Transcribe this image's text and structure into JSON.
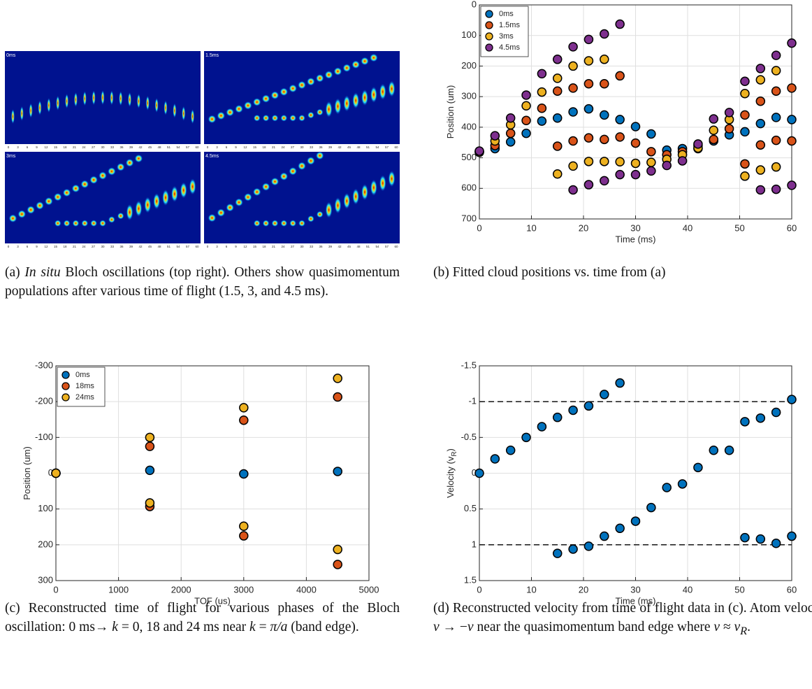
{
  "panel_a": {
    "labels": [
      "0ms",
      "1.5ms",
      "3ms",
      "4.5ms"
    ],
    "ticks": [
      0,
      3,
      6,
      9,
      12,
      15,
      18,
      21,
      24,
      27,
      30,
      33,
      36,
      39,
      42,
      45,
      48,
      51,
      54,
      57,
      60
    ]
  },
  "captions": {
    "a": [
      "(a) ",
      "In situ",
      " Bloch oscillations (top right). Others show quasimomentum populations after various time of flight (1.5, 3, and 4.5 ms)."
    ],
    "b": [
      "(b) Fitted cloud positions vs. time from (a)"
    ],
    "c": [
      "(c) Reconstructed time of flight for various phases of the Bloch oscillation: 0 ms→ ",
      "k",
      " = 0, 18 and 24 ms near ",
      "k",
      " = ",
      "π/a",
      " (band edge)."
    ],
    "d": [
      "(d) Reconstructed velocity from time of flight data in (c). Atom velocity ",
      "v",
      " → −",
      "v",
      " near the quasimomentum band edge where ",
      "v",
      " ≈ ",
      "v",
      "R",
      "."
    ]
  },
  "chart_data": [
    {
      "type": "scatter",
      "xlabel": "Time (ms)",
      "ylabel": "Position (um)",
      "xlim": [
        0,
        60
      ],
      "ylim": [
        0,
        700
      ],
      "y_inverted": true,
      "xticks": [
        0,
        10,
        20,
        30,
        40,
        50,
        60
      ],
      "yticks": [
        0,
        100,
        200,
        300,
        400,
        500,
        600,
        700
      ],
      "grid": true,
      "legend": "upper left",
      "series": [
        {
          "name": "0ms",
          "color": "#0072BD",
          "x": [
            0,
            3,
            6,
            9,
            12,
            15,
            18,
            21,
            24,
            27,
            30,
            33,
            36,
            39,
            42,
            45,
            48,
            51,
            54,
            57,
            60
          ],
          "y": [
            480,
            470,
            448,
            420,
            380,
            370,
            350,
            340,
            360,
            375,
            398,
            422,
            475,
            470,
            460,
            445,
            425,
            415,
            388,
            368,
            375
          ]
        },
        {
          "name": "1.5ms",
          "color": "#D95319",
          "x": [
            0,
            3,
            6,
            9,
            12,
            15,
            18,
            21,
            24,
            27,
            15,
            18,
            21,
            24,
            27,
            30,
            33,
            36,
            39,
            42,
            45,
            48,
            51,
            54,
            57,
            60,
            51,
            54,
            57,
            60
          ],
          "y": [
            480,
            460,
            420,
            378,
            338,
            282,
            272,
            258,
            258,
            232,
            462,
            445,
            435,
            440,
            432,
            452,
            480,
            490,
            480,
            470,
            440,
            405,
            360,
            315,
            282,
            272,
            520,
            458,
            443,
            445
          ]
        },
        {
          "name": "3ms",
          "color": "#EDB120",
          "x": [
            0,
            3,
            6,
            9,
            12,
            15,
            18,
            21,
            24,
            15,
            18,
            21,
            24,
            27,
            30,
            33,
            36,
            39,
            42,
            45,
            48,
            51,
            54,
            57,
            51,
            54,
            57
          ],
          "y": [
            482,
            445,
            392,
            330,
            285,
            240,
            200,
            183,
            178,
            553,
            527,
            512,
            512,
            513,
            518,
            515,
            505,
            490,
            468,
            410,
            375,
            290,
            245,
            215,
            560,
            540,
            530
          ]
        },
        {
          "name": "4.5ms",
          "color": "#7E2F8E",
          "x": [
            0,
            3,
            6,
            9,
            12,
            15,
            18,
            21,
            24,
            27,
            18,
            21,
            24,
            27,
            30,
            33,
            36,
            39,
            42,
            45,
            48,
            51,
            54,
            57,
            60,
            54,
            57,
            60
          ],
          "y": [
            478,
            428,
            370,
            295,
            225,
            178,
            137,
            113,
            95,
            63,
            605,
            588,
            575,
            555,
            555,
            543,
            525,
            510,
            455,
            373,
            352,
            250,
            208,
            165,
            125,
            605,
            603,
            590
          ]
        }
      ]
    },
    {
      "type": "scatter",
      "xlabel": "TOF (us)",
      "ylabel": "Position (um)",
      "xlim": [
        0,
        5000
      ],
      "ylim": [
        -300,
        300
      ],
      "y_inverted": true,
      "xticks": [
        0,
        1000,
        2000,
        3000,
        4000,
        5000
      ],
      "yticks": [
        -300,
        -200,
        -100,
        0,
        100,
        200,
        300
      ],
      "grid": true,
      "legend": "upper left",
      "series": [
        {
          "name": "0ms",
          "color": "#0072BD",
          "x": [
            0,
            1500,
            3000,
            4500
          ],
          "y": [
            0,
            -8,
            2,
            -5
          ]
        },
        {
          "name": "18ms",
          "color": "#D95319",
          "x": [
            0,
            1500,
            1500,
            3000,
            3000,
            4500,
            4500
          ],
          "y": [
            0,
            -75,
            93,
            -148,
            175,
            -213,
            255
          ]
        },
        {
          "name": "24ms",
          "color": "#EDB120",
          "x": [
            0,
            1500,
            1500,
            3000,
            3000,
            4500,
            4500
          ],
          "y": [
            0,
            -100,
            83,
            -183,
            148,
            -265,
            213
          ]
        }
      ]
    },
    {
      "type": "scatter",
      "xlabel": "Time (ms)",
      "ylabel": "Velocity (v",
      "ylabel_sub": "R",
      "ylabel_end": ")",
      "xlim": [
        0,
        60
      ],
      "ylim": [
        -1.5,
        1.5
      ],
      "y_inverted": true,
      "xticks": [
        0,
        10,
        20,
        30,
        40,
        50,
        60
      ],
      "yticks": [
        -1.5,
        -1,
        -0.5,
        0,
        0.5,
        1,
        1.5
      ],
      "grid": true,
      "hlines": [
        -1,
        1
      ],
      "series": [
        {
          "color": "#0072BD",
          "x": [
            0,
            3,
            6,
            9,
            12,
            15,
            18,
            21,
            24,
            27,
            15,
            18,
            21,
            24,
            27,
            30,
            33,
            36,
            39,
            42,
            45,
            48,
            51,
            54,
            57,
            60,
            51,
            54,
            57,
            60
          ],
          "y": [
            0,
            -0.2,
            -0.32,
            -0.5,
            -0.65,
            -0.78,
            -0.88,
            -0.94,
            -1.1,
            -1.26,
            1.12,
            1.06,
            1.02,
            0.88,
            0.77,
            0.67,
            0.48,
            0.2,
            0.15,
            -0.08,
            -0.32,
            -0.32,
            -0.72,
            -0.77,
            -0.85,
            -1.03,
            0.9,
            0.92,
            0.98,
            0.88
          ]
        }
      ]
    }
  ]
}
